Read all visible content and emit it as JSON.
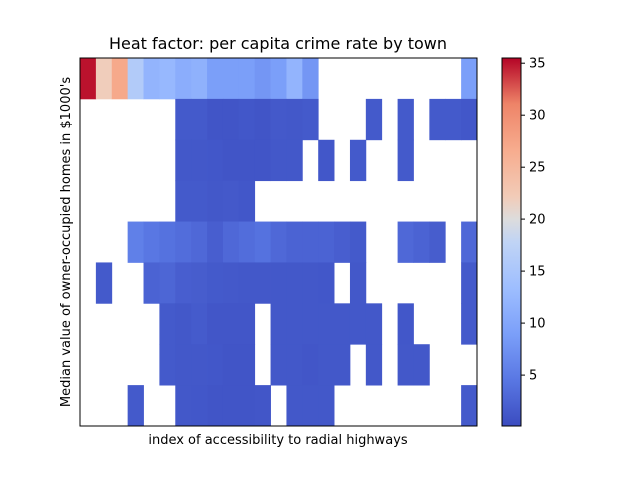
{
  "chart_data": {
    "type": "heatmap",
    "title": "Heat factor: per capita crime rate by town",
    "xlabel": "index of accessibility to radial highways",
    "ylabel": "Median value of owner-occupied homes in $1000's",
    "colormap": "coolwarm",
    "colorbar": {
      "vmin": 0.1,
      "vmax": 35.5,
      "ticks": [
        "5",
        "10",
        "15",
        "20",
        "25",
        "30",
        "35"
      ],
      "tick_values": [
        5,
        10,
        15,
        20,
        25,
        30,
        35
      ]
    },
    "n_columns": 25,
    "n_rows": 9,
    "rows": [
      [
        35.0,
        22.0,
        27.0,
        16.0,
        12.0,
        12.5,
        11.0,
        11.5,
        9.0,
        9.0,
        9.0,
        8.0,
        9.0,
        12.0,
        8.0,
        null,
        null,
        null,
        null,
        null,
        null,
        null,
        null,
        null,
        9.0
      ],
      [
        null,
        null,
        null,
        null,
        null,
        null,
        1.5,
        1.5,
        1.0,
        1.0,
        1.2,
        1.0,
        1.4,
        1.3,
        1.5,
        null,
        null,
        null,
        1.5,
        null,
        1.5,
        null,
        1.5,
        1.5,
        1.2
      ],
      [
        null,
        null,
        null,
        null,
        null,
        null,
        1.3,
        1.3,
        1.2,
        1.0,
        1.0,
        1.0,
        1.3,
        1.3,
        null,
        1.2,
        null,
        1.5,
        null,
        null,
        1.5,
        null,
        null,
        null,
        null
      ],
      [
        null,
        null,
        null,
        null,
        null,
        null,
        1.5,
        1.5,
        1.3,
        1.4,
        1.2,
        null,
        null,
        null,
        null,
        null,
        null,
        null,
        null,
        null,
        null,
        null,
        null,
        null,
        null
      ],
      [
        null,
        null,
        null,
        5.5,
        4.5,
        4.0,
        3.5,
        3.0,
        2.0,
        3.0,
        3.5,
        4.0,
        3.0,
        2.5,
        2.5,
        2.5,
        2.0,
        1.5,
        null,
        null,
        3.0,
        2.5,
        1.8,
        null,
        3.0
      ],
      [
        null,
        1.5,
        null,
        null,
        2.5,
        2.8,
        2.0,
        1.8,
        1.5,
        1.4,
        1.3,
        1.3,
        1.3,
        1.3,
        1.3,
        1.2,
        null,
        1.3,
        null,
        null,
        null,
        null,
        null,
        null,
        1.5
      ],
      [
        null,
        null,
        null,
        null,
        null,
        1.5,
        1.3,
        1.6,
        1.1,
        1.1,
        1.1,
        null,
        1.3,
        1.3,
        1.3,
        1.3,
        1.3,
        1.3,
        1.3,
        null,
        1.2,
        null,
        null,
        null,
        1.5
      ],
      [
        null,
        null,
        null,
        null,
        null,
        1.5,
        1.3,
        1.3,
        1.2,
        1.0,
        1.0,
        null,
        1.3,
        1.3,
        1.1,
        1.3,
        1.3,
        null,
        1.3,
        null,
        1.3,
        1.3,
        null,
        null,
        null
      ],
      [
        null,
        null,
        null,
        1.5,
        null,
        null,
        1.3,
        1.2,
        1.0,
        1.0,
        1.0,
        1.1,
        null,
        1.3,
        1.3,
        1.3,
        null,
        null,
        null,
        null,
        null,
        null,
        null,
        null,
        1.5
      ]
    ]
  }
}
